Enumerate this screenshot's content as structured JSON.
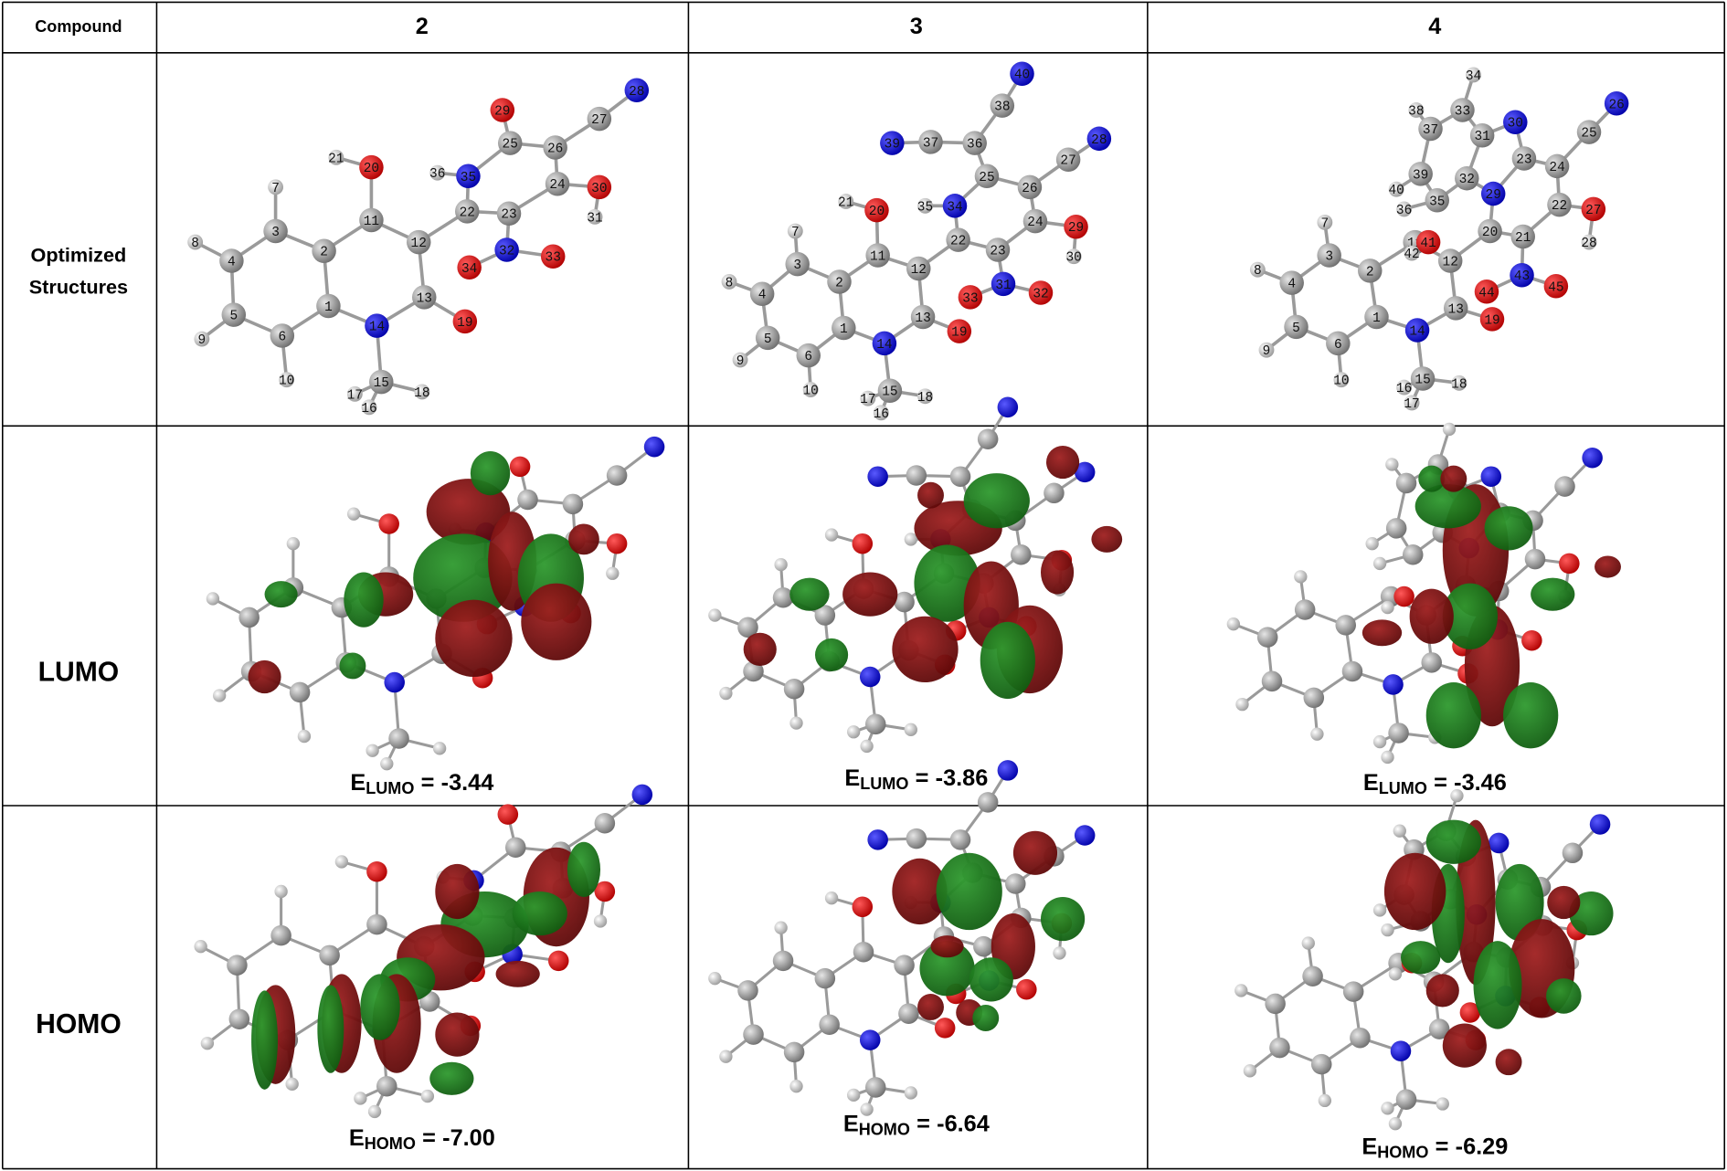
{
  "header": {
    "label": "Compound",
    "compounds": [
      "2",
      "3",
      "4"
    ]
  },
  "structures": {
    "label": [
      "Optimized",
      "Structures"
    ],
    "atoms": [
      [
        1,
        2,
        3,
        4,
        5,
        6,
        7,
        8,
        9,
        10,
        11,
        12,
        13,
        14,
        15,
        16,
        17,
        18,
        19,
        20,
        21,
        22,
        23,
        24,
        25,
        26,
        27,
        28,
        29,
        30,
        31,
        32,
        33,
        34,
        35,
        36
      ],
      [
        1,
        2,
        3,
        4,
        5,
        6,
        7,
        8,
        9,
        10,
        11,
        12,
        13,
        14,
        15,
        16,
        17,
        18,
        19,
        20,
        21,
        22,
        23,
        24,
        25,
        26,
        27,
        28,
        29,
        30,
        31,
        32,
        33,
        34,
        35,
        36,
        37,
        38,
        39,
        40
      ],
      [
        1,
        2,
        3,
        4,
        5,
        6,
        7,
        8,
        9,
        10,
        11,
        12,
        13,
        14,
        15,
        16,
        17,
        18,
        19,
        20,
        21,
        22,
        23,
        24,
        25,
        26,
        27,
        28,
        29,
        30,
        31,
        32,
        33,
        34,
        35,
        36,
        37,
        38,
        39,
        40,
        41,
        42,
        43,
        44,
        45
      ]
    ]
  },
  "lumo": {
    "label": "LUMO",
    "energies": [
      {
        "symbol": "E",
        "sub": "LUMO",
        "sign": "=",
        "value": "-3.44"
      },
      {
        "symbol": "E",
        "sub": "LUMO",
        "sign": "=",
        "value": "-3.86"
      },
      {
        "symbol": "E",
        "sub": "LUMO",
        "sign": "=",
        "value": "-3.46"
      }
    ]
  },
  "homo": {
    "label": "HOMO",
    "energies": [
      {
        "symbol": "E",
        "sub": "HOMO",
        "sign": "=",
        "value": "-7.00"
      },
      {
        "symbol": "E",
        "sub": "HOMO",
        "sign": "=",
        "value": "-6.64"
      },
      {
        "symbol": "E",
        "sub": "HOMO",
        "sign": "=",
        "value": "-6.29"
      }
    ]
  }
}
